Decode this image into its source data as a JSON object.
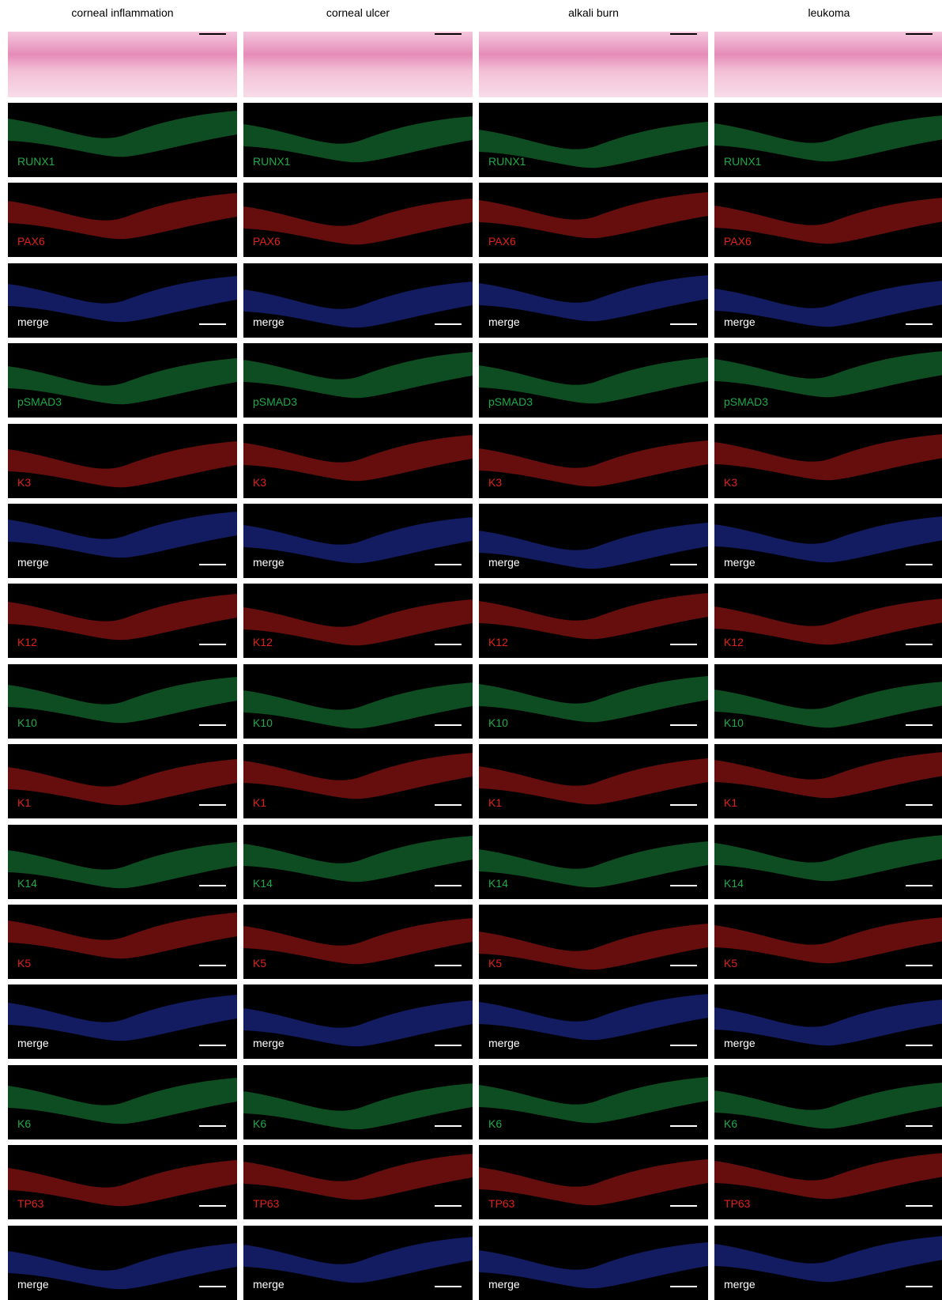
{
  "columns": [
    "corneal inflammation",
    "corneal ulcer",
    "alkali burn",
    "leukoma"
  ],
  "rows": [
    {
      "label": "RUNX1",
      "color": "#1faa4a"
    },
    {
      "label": "PAX6",
      "color": "#e0201c"
    },
    {
      "label": "merge",
      "color": "#ffffff"
    },
    {
      "label": "pSMAD3",
      "color": "#1faa4a"
    },
    {
      "label": "K3",
      "color": "#e0201c"
    },
    {
      "label": "merge",
      "color": "#ffffff"
    },
    {
      "label": "K12",
      "color": "#e0201c"
    },
    {
      "label": "K10",
      "color": "#1faa4a"
    },
    {
      "label": "K1",
      "color": "#e0201c"
    },
    {
      "label": "K14",
      "color": "#1faa4a"
    },
    {
      "label": "K5",
      "color": "#e0201c"
    },
    {
      "label": "merge",
      "color": "#ffffff"
    },
    {
      "label": "K6",
      "color": "#1faa4a"
    },
    {
      "label": "TP63",
      "color": "#e0201c"
    },
    {
      "label": "merge",
      "color": "#ffffff"
    }
  ]
}
